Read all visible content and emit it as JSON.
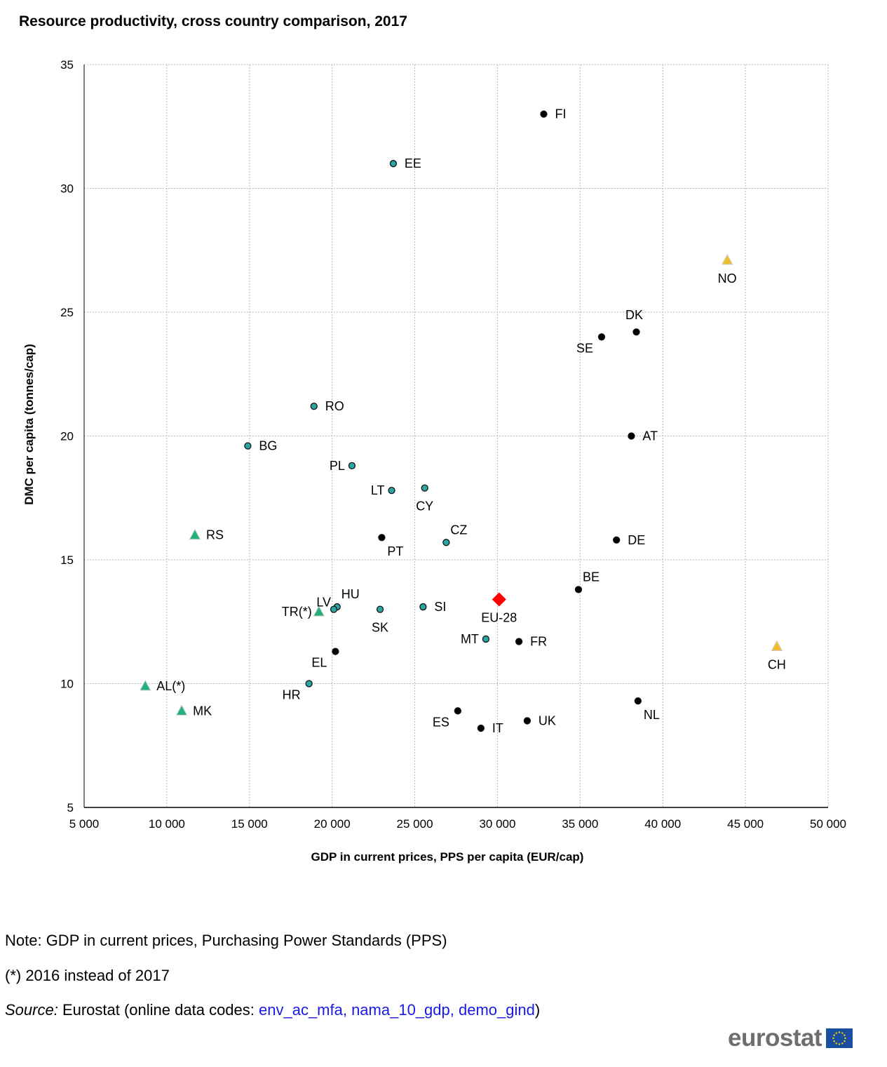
{
  "title": "Resource productivity, cross country comparison, 2017",
  "chart_data": {
    "type": "scatter",
    "title": "Resource productivity, cross country comparison, 2017",
    "xlabel": "GDP in current prices, PPS per capita (EUR/cap)",
    "ylabel": "DMC per capita (tonnes/cap)",
    "xlim": [
      5000,
      50000
    ],
    "ylim": [
      5,
      35
    ],
    "x_ticks": [
      5000,
      10000,
      15000,
      20000,
      25000,
      30000,
      35000,
      40000,
      45000,
      50000
    ],
    "x_tick_labels": [
      "5 000",
      "10 000",
      "15 000",
      "20 000",
      "25 000",
      "30 000",
      "35 000",
      "40 000",
      "45 000",
      "50 000"
    ],
    "y_ticks": [
      5,
      10,
      15,
      20,
      25,
      30,
      35
    ],
    "y_tick_labels": [
      "5",
      "10",
      "15",
      "20",
      "25",
      "30",
      "35"
    ],
    "grid": true,
    "legend": "none",
    "colors": {
      "group_a": "#000000",
      "group_b": "#2aa6a6",
      "aggregate": "#ff0000",
      "candidates": "#23b07a",
      "efta": "#f0be2d"
    },
    "points": [
      {
        "label": "FI",
        "x": 32800,
        "y": 33.0,
        "group": "group_a",
        "marker": "circle",
        "label_pos": "right"
      },
      {
        "label": "EE",
        "x": 23700,
        "y": 31.0,
        "group": "group_b",
        "marker": "circle",
        "label_pos": "right"
      },
      {
        "label": "DK",
        "x": 38400,
        "y": 24.2,
        "group": "group_a",
        "marker": "circle",
        "label_pos": "above"
      },
      {
        "label": "SE",
        "x": 36300,
        "y": 24.0,
        "group": "group_a",
        "marker": "circle",
        "label_pos": "below-left"
      },
      {
        "label": "RO",
        "x": 18900,
        "y": 21.2,
        "group": "group_b",
        "marker": "circle",
        "label_pos": "right"
      },
      {
        "label": "AT",
        "x": 38100,
        "y": 20.0,
        "group": "group_a",
        "marker": "circle",
        "label_pos": "right"
      },
      {
        "label": "BG",
        "x": 14900,
        "y": 19.6,
        "group": "group_b",
        "marker": "circle",
        "label_pos": "right"
      },
      {
        "label": "PL",
        "x": 21200,
        "y": 18.8,
        "group": "group_b",
        "marker": "circle",
        "label_pos": "left"
      },
      {
        "label": "LT",
        "x": 23600,
        "y": 17.8,
        "group": "group_b",
        "marker": "circle",
        "label_pos": "left"
      },
      {
        "label": "CY",
        "x": 25600,
        "y": 17.9,
        "group": "group_b",
        "marker": "circle",
        "label_pos": "below"
      },
      {
        "label": "PT",
        "x": 23000,
        "y": 15.9,
        "group": "group_a",
        "marker": "circle",
        "label_pos": "below-right"
      },
      {
        "label": "CZ",
        "x": 26900,
        "y": 15.7,
        "group": "group_b",
        "marker": "circle",
        "label_pos": "above-right"
      },
      {
        "label": "DE",
        "x": 37200,
        "y": 15.8,
        "group": "group_a",
        "marker": "circle",
        "label_pos": "right"
      },
      {
        "label": "BE",
        "x": 34900,
        "y": 13.8,
        "group": "group_a",
        "marker": "circle",
        "label_pos": "above-right"
      },
      {
        "label": "HU",
        "x": 20300,
        "y": 13.1,
        "group": "group_b",
        "marker": "circle",
        "label_pos": "above-right"
      },
      {
        "label": "LV",
        "x": 20100,
        "y": 13.0,
        "group": "group_b",
        "marker": "circle",
        "label_pos": "above-left"
      },
      {
        "label": "SK",
        "x": 22900,
        "y": 13.0,
        "group": "group_b",
        "marker": "circle",
        "label_pos": "below"
      },
      {
        "label": "SI",
        "x": 25500,
        "y": 13.1,
        "group": "group_b",
        "marker": "circle",
        "label_pos": "right"
      },
      {
        "label": "EU-28",
        "x": 30100,
        "y": 13.4,
        "group": "aggregate",
        "marker": "diamond",
        "label_pos": "below"
      },
      {
        "label": "MT",
        "x": 29300,
        "y": 11.8,
        "group": "group_b",
        "marker": "circle",
        "label_pos": "left"
      },
      {
        "label": "FR",
        "x": 31300,
        "y": 11.7,
        "group": "group_a",
        "marker": "circle",
        "label_pos": "right"
      },
      {
        "label": "EL",
        "x": 20200,
        "y": 11.3,
        "group": "group_a",
        "marker": "circle",
        "label_pos": "below-left"
      },
      {
        "label": "HR",
        "x": 18600,
        "y": 10.0,
        "group": "group_b",
        "marker": "circle",
        "label_pos": "below-left"
      },
      {
        "label": "ES",
        "x": 27600,
        "y": 8.9,
        "group": "group_a",
        "marker": "circle",
        "label_pos": "below-left"
      },
      {
        "label": "IT",
        "x": 29000,
        "y": 8.2,
        "group": "group_a",
        "marker": "circle",
        "label_pos": "right"
      },
      {
        "label": "UK",
        "x": 31800,
        "y": 8.5,
        "group": "group_a",
        "marker": "circle",
        "label_pos": "right"
      },
      {
        "label": "NL",
        "x": 38500,
        "y": 9.3,
        "group": "group_a",
        "marker": "circle",
        "label_pos": "below-right"
      },
      {
        "label": "RS",
        "x": 11700,
        "y": 16.0,
        "group": "candidates",
        "marker": "triangle",
        "label_pos": "right"
      },
      {
        "label": "TR(*)",
        "x": 19200,
        "y": 12.9,
        "group": "candidates",
        "marker": "triangle",
        "label_pos": "left"
      },
      {
        "label": "AL(*)",
        "x": 8700,
        "y": 9.9,
        "group": "candidates",
        "marker": "triangle",
        "label_pos": "right"
      },
      {
        "label": "MK",
        "x": 10900,
        "y": 8.9,
        "group": "candidates",
        "marker": "triangle",
        "label_pos": "right"
      },
      {
        "label": "NO",
        "x": 43900,
        "y": 27.1,
        "group": "efta",
        "marker": "triangle",
        "label_pos": "below"
      },
      {
        "label": "CH",
        "x": 46900,
        "y": 11.5,
        "group": "efta",
        "marker": "triangle",
        "label_pos": "below"
      }
    ]
  },
  "notes": {
    "note": "Note: GDP in current prices, Purchasing Power Standards (PPS)",
    "footnote": "(*) 2016 instead of 2017",
    "source_label": "Source:",
    "source_text": " Eurostat (online data codes: ",
    "source_codes": "env_ac_mfa, nama_10_gdp, demo_gind",
    "source_end": ")"
  },
  "logo": {
    "text": "eurostat",
    "flag_color": "#1a4fa0",
    "star_color": "#ffd400"
  }
}
